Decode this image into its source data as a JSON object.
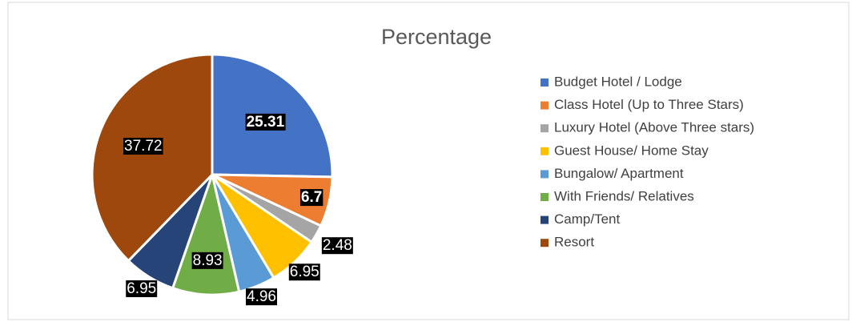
{
  "chart_data": {
    "type": "pie",
    "title": "Percentage",
    "categories": [
      "Budget Hotel / Lodge",
      "Class Hotel (Up to Three Stars)",
      "Luxury Hotel (Above Three stars)",
      "Guest House/ Home Stay",
      "Bungalow/ Apartment",
      "With Friends/ Relatives",
      "Camp/Tent",
      "Resort"
    ],
    "values": [
      25.31,
      6.7,
      2.48,
      6.95,
      4.96,
      8.93,
      6.95,
      37.72
    ],
    "colors": [
      "#4472c4",
      "#ed7d31",
      "#a5a5a5",
      "#ffc000",
      "#5b9bd5",
      "#70ad47",
      "#264478",
      "#9e480e"
    ],
    "legend": "right"
  }
}
